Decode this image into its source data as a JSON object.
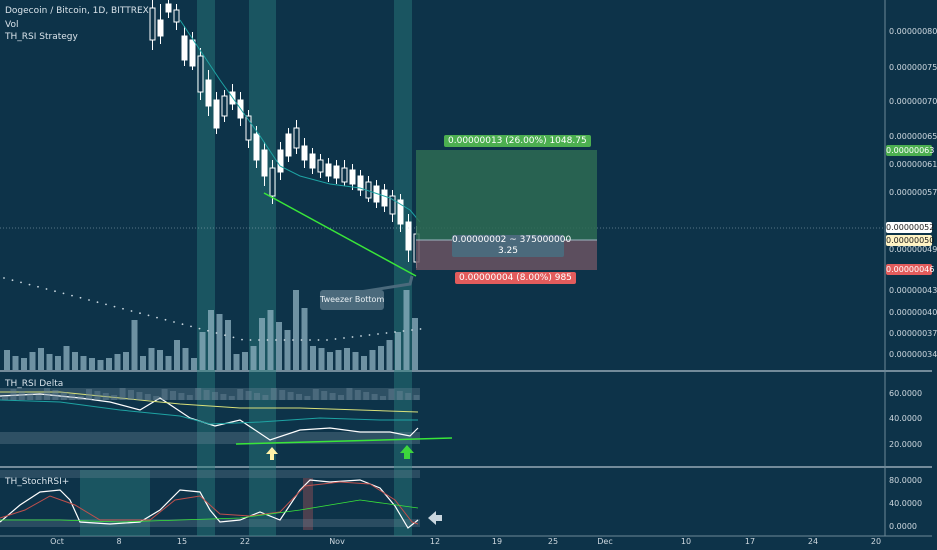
{
  "header": {
    "symbol_line": "Dogecoin / Bitcoin, 1D, BITTREX",
    "indicator_vol": "Vol",
    "indicator_strategy": "TH_RSI Strategy"
  },
  "price_axis": {
    "labels": [
      "0.00000080",
      "0.00000075",
      "0.00000070",
      "0.00000065",
      "0.00000061",
      "0.00000057",
      "0.00000052",
      "0.00000049",
      "0.00000043",
      "0.00000040",
      "0.00000037",
      "0.00000034"
    ],
    "badges": [
      {
        "text": "0.00000063",
        "bg": "#4caf50",
        "fg": "#ffffff"
      },
      {
        "text": "0.00000052",
        "bg": "#ffffff",
        "fg": "#1b1b1b"
      },
      {
        "text": "0.00000050",
        "bg": "#fff3c4",
        "fg": "#1b1b1b"
      },
      {
        "text": "0.00000046",
        "bg": "#e25c5c",
        "fg": "#ffffff"
      }
    ]
  },
  "position": {
    "target_label": "0.00000013 (26.00%) 1048.75",
    "center_line1": "0.00000002 ~ 375000000",
    "center_line2": "3.25",
    "stop_label": "0.00000004 (8.00%) 985",
    "target_color": "#4caf50",
    "stop_color": "#e25c5c"
  },
  "annotation": {
    "tweezer_text": "Tweezer Bottom"
  },
  "rsi_pane": {
    "title": "TH_RSI Delta",
    "labels": [
      "60.0000",
      "40.0000",
      "20.0000"
    ]
  },
  "stoch_pane": {
    "title": "TH_StochRSI+",
    "labels": [
      "80.0000",
      "40.0000",
      "0.0000"
    ]
  },
  "time_axis": {
    "labels": [
      "Oct",
      "8",
      "15",
      "22",
      "Nov",
      "12",
      "19",
      "25",
      "Dec",
      "10",
      "17",
      "24",
      "20"
    ]
  },
  "colors": {
    "background": "#0d3349",
    "candle_up": "#ffffff",
    "candle_down": "#ffffff",
    "trendline": "#39e639",
    "highlight_band": "#2a7f7f",
    "ma_line": "#1ea3a3",
    "rsi_line": "#ffffff",
    "rsi_ma": "#d8e07a",
    "stoch_k": "#ffffff",
    "stoch_d": "#c0504d"
  },
  "icons": [
    "arrow-up-icon",
    "arrow-left-icon"
  ]
}
